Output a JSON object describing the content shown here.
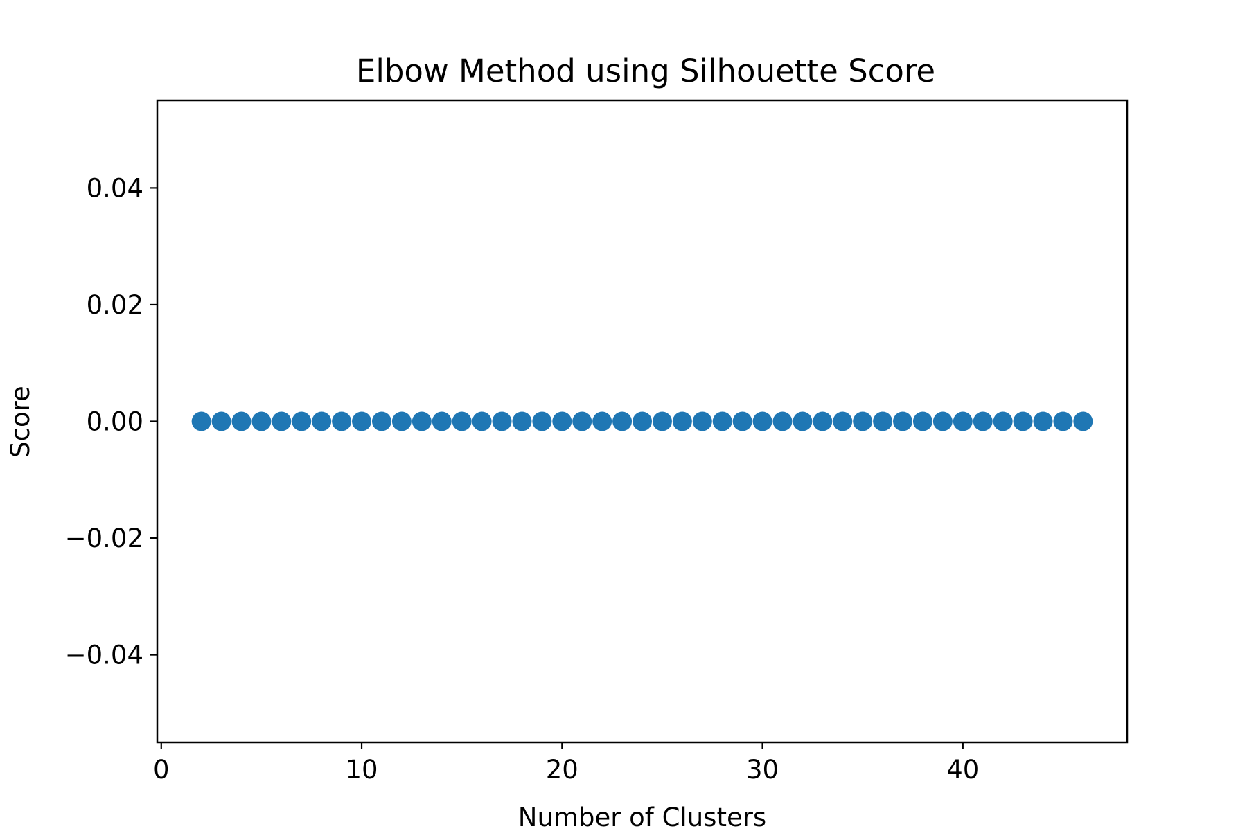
{
  "chart_data": {
    "type": "scatter",
    "title": "Elbow Method using Silhouette Score",
    "xlabel": "Number of Clusters",
    "ylabel": "Score",
    "xlim": [
      -0.2,
      48.2
    ],
    "ylim": [
      -0.055,
      0.055
    ],
    "xticks": [
      0,
      10,
      20,
      30,
      40
    ],
    "yticks": [
      0.04,
      0.02,
      0.0,
      -0.02,
      -0.04
    ],
    "xtick_labels": [
      "0",
      "10",
      "20",
      "30",
      "40"
    ],
    "ytick_labels": [
      "0.04",
      "0.02",
      "0.00",
      "−0.02",
      "−0.04"
    ],
    "grid": false,
    "marker_color": "#1f77b4",
    "x": [
      2,
      3,
      4,
      5,
      6,
      7,
      8,
      9,
      10,
      11,
      12,
      13,
      14,
      15,
      16,
      17,
      18,
      19,
      20,
      21,
      22,
      23,
      24,
      25,
      26,
      27,
      28,
      29,
      30,
      31,
      32,
      33,
      34,
      35,
      36,
      37,
      38,
      39,
      40,
      41,
      42,
      43,
      44,
      45,
      46
    ],
    "y": [
      0,
      0,
      0,
      0,
      0,
      0,
      0,
      0,
      0,
      0,
      0,
      0,
      0,
      0,
      0,
      0,
      0,
      0,
      0,
      0,
      0,
      0,
      0,
      0,
      0,
      0,
      0,
      0,
      0,
      0,
      0,
      0,
      0,
      0,
      0,
      0,
      0,
      0,
      0,
      0,
      0,
      0,
      0,
      0,
      0
    ]
  }
}
